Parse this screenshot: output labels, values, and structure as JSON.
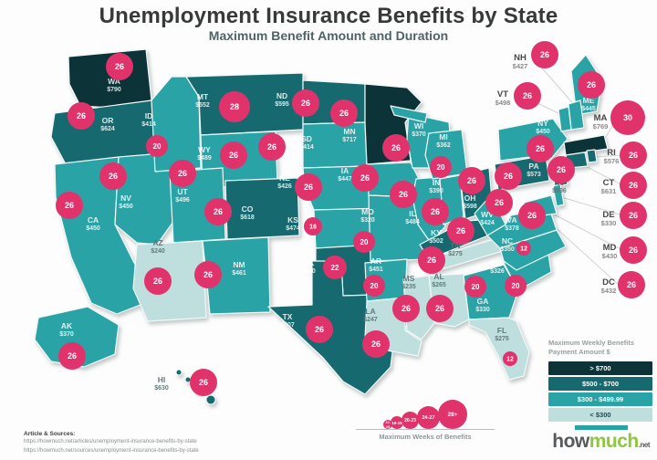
{
  "title": "Unemployment Insurance Benefits by State",
  "subtitle": "Maximum Benefit Amount and Duration",
  "colors": {
    "circle_pink": "#e0336c",
    "map_stroke": "#f2faf9",
    "leader_line": "#cfd4d4",
    "logo_bar": "#27a2a5",
    "logo_much": "#8fc73e"
  },
  "legend": {
    "title_line1": "Maximum Weekly Benefits",
    "title_line2": "Payment Amount $",
    "buckets": [
      {
        "label": "> $700",
        "color": "#0b3338",
        "text": "#ffffff"
      },
      {
        "label": "$500 - $700",
        "color": "#16696e",
        "text": "#ffffff"
      },
      {
        "label": "$300 - $499.99",
        "color": "#2aa3a6",
        "text": "#ffffff"
      },
      {
        "label": "< $300",
        "color": "#bedfde",
        "text": "#23494c"
      }
    ]
  },
  "weeks_scale": {
    "caption": "Maximum Weeks of Benefits",
    "steps": [
      {
        "label": "12-15"
      },
      {
        "label": "16-19"
      },
      {
        "label": "20-23"
      },
      {
        "label": "24-27"
      },
      {
        "label": "28+"
      }
    ]
  },
  "footer": {
    "heading": "Article & Sources:",
    "sources": [
      "https://howmuch.net/articles/unemployment-insurance-benefits-by-state",
      "https://howmuch.net/sources/unemployment-insurance-benefits-by-state"
    ]
  },
  "logo": {
    "word1": "how",
    "word2": "much",
    "suffix": ".net"
  },
  "chart_data": {
    "type": "map",
    "title": "Unemployment Insurance Benefits by State",
    "subtitle": "Maximum Benefit Amount and Duration",
    "amount_legend_buckets": [
      "> $700",
      "$500 - $700",
      "$300 - $499.99",
      "< $300"
    ],
    "weeks_bubble_bins": [
      "12-15",
      "16-19",
      "20-23",
      "24-27",
      "28+"
    ],
    "states": [
      {
        "abbr": "WA",
        "amount": 790,
        "weeks": 26,
        "bucket": 0
      },
      {
        "abbr": "OR",
        "amount": 624,
        "weeks": 26,
        "bucket": 1
      },
      {
        "abbr": "CA",
        "amount": 450,
        "weeks": 26,
        "bucket": 2
      },
      {
        "abbr": "NV",
        "amount": 450,
        "weeks": 26,
        "bucket": 2
      },
      {
        "abbr": "ID",
        "amount": 414,
        "weeks": 20,
        "bucket": 2
      },
      {
        "abbr": "MT",
        "amount": 552,
        "weeks": 28,
        "bucket": 1
      },
      {
        "abbr": "WY",
        "amount": 489,
        "weeks": 26,
        "bucket": 2
      },
      {
        "abbr": "UT",
        "amount": 496,
        "weeks": 26,
        "bucket": 2
      },
      {
        "abbr": "CO",
        "amount": 618,
        "weeks": 26,
        "bucket": 1
      },
      {
        "abbr": "AZ",
        "amount": 240,
        "weeks": 26,
        "bucket": 3
      },
      {
        "abbr": "NM",
        "amount": 461,
        "weeks": 26,
        "bucket": 2
      },
      {
        "abbr": "ND",
        "amount": 595,
        "weeks": 26,
        "bucket": 1
      },
      {
        "abbr": "SD",
        "amount": 414,
        "weeks": 26,
        "bucket": 2
      },
      {
        "abbr": "NE",
        "amount": 426,
        "weeks": 26,
        "bucket": 2
      },
      {
        "abbr": "KS",
        "amount": 474,
        "weeks": 16,
        "bucket": 2
      },
      {
        "abbr": "OK",
        "amount": 520,
        "weeks": 22,
        "bucket": 1
      },
      {
        "abbr": "TX",
        "amount": 507,
        "weeks": 26,
        "bucket": 1
      },
      {
        "abbr": "MN",
        "amount": 717,
        "weeks": 26,
        "bucket": 0
      },
      {
        "abbr": "IA",
        "amount": 447,
        "weeks": 26,
        "bucket": 2
      },
      {
        "abbr": "MO",
        "amount": 320,
        "weeks": 20,
        "bucket": 2
      },
      {
        "abbr": "AR",
        "amount": 451,
        "weeks": 20,
        "bucket": 2
      },
      {
        "abbr": "LA",
        "amount": 247,
        "weeks": 26,
        "bucket": 3
      },
      {
        "abbr": "WI",
        "amount": 370,
        "weeks": 26,
        "bucket": 2
      },
      {
        "abbr": "IL",
        "amount": 484,
        "weeks": 26,
        "bucket": 2
      },
      {
        "abbr": "MI",
        "amount": 362,
        "weeks": 20,
        "bucket": 2
      },
      {
        "abbr": "IN",
        "amount": 390,
        "weeks": 26,
        "bucket": 2
      },
      {
        "abbr": "OH",
        "amount": 598,
        "weeks": 26,
        "bucket": 1
      },
      {
        "abbr": "KY",
        "amount": 502,
        "weeks": 26,
        "bucket": 1
      },
      {
        "abbr": "TN",
        "amount": 275,
        "weeks": 26,
        "bucket": 3
      },
      {
        "abbr": "MS",
        "amount": 235,
        "weeks": 26,
        "bucket": 3
      },
      {
        "abbr": "AL",
        "amount": 265,
        "weeks": 26,
        "bucket": 3
      },
      {
        "abbr": "GA",
        "amount": 330,
        "weeks": 20,
        "bucket": 2
      },
      {
        "abbr": "SC",
        "amount": 326,
        "weeks": 20,
        "bucket": 2
      },
      {
        "abbr": "NC",
        "amount": 350,
        "weeks": 12,
        "bucket": 2
      },
      {
        "abbr": "VA",
        "amount": 378,
        "weeks": 26,
        "bucket": 2
      },
      {
        "abbr": "WV",
        "amount": 424,
        "weeks": 26,
        "bucket": 2
      },
      {
        "abbr": "PA",
        "amount": 573,
        "weeks": 26,
        "bucket": 1
      },
      {
        "abbr": "NY",
        "amount": 450,
        "weeks": 26,
        "bucket": 2
      },
      {
        "abbr": "NJ",
        "amount": 696,
        "weeks": 26,
        "bucket": 1
      },
      {
        "abbr": "ME",
        "amount": 445,
        "weeks": 26,
        "bucket": 2
      },
      {
        "abbr": "FL",
        "amount": 275,
        "weeks": 12,
        "bucket": 3
      },
      {
        "abbr": "AK",
        "amount": 370,
        "weeks": 26,
        "bucket": 2
      },
      {
        "abbr": "HI",
        "amount": 630,
        "weeks": 26,
        "bucket": 1
      },
      {
        "abbr": "NH",
        "amount": 427,
        "weeks": 26,
        "bucket": 2,
        "callout": true
      },
      {
        "abbr": "VT",
        "amount": 498,
        "weeks": 26,
        "bucket": 2,
        "callout": true
      },
      {
        "abbr": "MA",
        "amount": 769,
        "weeks": 30,
        "bucket": 0,
        "callout": true
      },
      {
        "abbr": "RI",
        "amount": 576,
        "weeks": 26,
        "bucket": 1,
        "callout": true
      },
      {
        "abbr": "CT",
        "amount": 631,
        "weeks": 26,
        "bucket": 1,
        "callout": true
      },
      {
        "abbr": "DE",
        "amount": 330,
        "weeks": 26,
        "bucket": 2,
        "callout": true
      },
      {
        "abbr": "MD",
        "amount": 430,
        "weeks": 26,
        "bucket": 2,
        "callout": true
      },
      {
        "abbr": "DC",
        "amount": 432,
        "weeks": 26,
        "bucket": 2,
        "callout": true
      }
    ]
  }
}
